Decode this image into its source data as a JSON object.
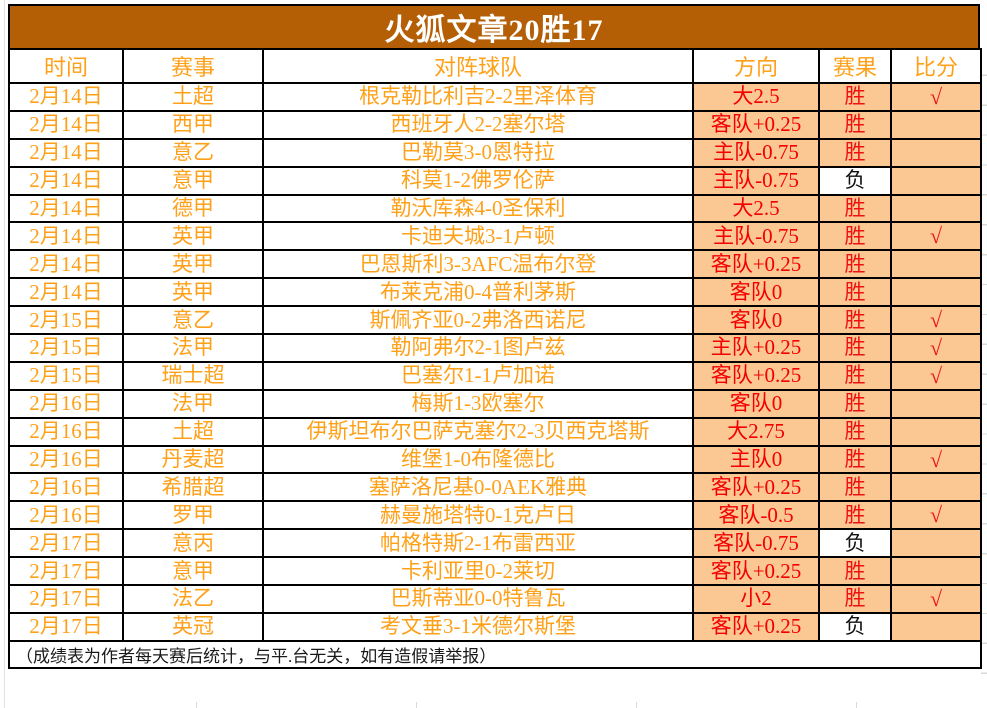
{
  "title": "火狐文章20胜17",
  "columns": {
    "time": "时间",
    "league": "赛事",
    "teams": "对阵球队",
    "direction": "方向",
    "result": "赛果",
    "score": "比分"
  },
  "check_mark": "√",
  "colors": {
    "title_bg": "#B45F06",
    "orange_text": "#FFA019",
    "highlight_bg": "#FBC894",
    "win_text": "#EE1111",
    "loss_text": "#111111",
    "direction_text": "#F40000"
  },
  "rows": [
    {
      "date": "2月14日",
      "league": "土超",
      "match": "根克勒比利吉2-2里泽体育",
      "direction": "大2.5",
      "result": "胜",
      "score": "√"
    },
    {
      "date": "2月14日",
      "league": "西甲",
      "match": "西班牙人2-2塞尔塔",
      "direction": "客队+0.25",
      "result": "胜",
      "score": ""
    },
    {
      "date": "2月14日",
      "league": "意乙",
      "match": "巴勒莫3-0恩特拉",
      "direction": "主队-0.75",
      "result": "胜",
      "score": ""
    },
    {
      "date": "2月14日",
      "league": "意甲",
      "match": "科莫1-2佛罗伦萨",
      "direction": "主队-0.75",
      "result": "负",
      "score": ""
    },
    {
      "date": "2月14日",
      "league": "德甲",
      "match": "勒沃库森4-0圣保利",
      "direction": "大2.5",
      "result": "胜",
      "score": ""
    },
    {
      "date": "2月14日",
      "league": "英甲",
      "match": "卡迪夫城3-1卢顿",
      "direction": "主队-0.75",
      "result": "胜",
      "score": "√"
    },
    {
      "date": "2月14日",
      "league": "英甲",
      "match": "巴恩斯利3-3AFC温布尔登",
      "direction": "客队+0.25",
      "result": "胜",
      "score": ""
    },
    {
      "date": "2月14日",
      "league": "英甲",
      "match": "布莱克浦0-4普利茅斯",
      "direction": "客队0",
      "result": "胜",
      "score": ""
    },
    {
      "date": "2月15日",
      "league": "意乙",
      "match": "斯佩齐亚0-2弗洛西诺尼",
      "direction": "客队0",
      "result": "胜",
      "score": "√"
    },
    {
      "date": "2月15日",
      "league": "法甲",
      "match": "勒阿弗尔2-1图卢兹",
      "direction": "主队+0.25",
      "result": "胜",
      "score": "√"
    },
    {
      "date": "2月15日",
      "league": "瑞士超",
      "match": "巴塞尔1-1卢加诺",
      "direction": "客队+0.25",
      "result": "胜",
      "score": "√"
    },
    {
      "date": "2月16日",
      "league": "法甲",
      "match": "梅斯1-3欧塞尔",
      "direction": "客队0",
      "result": "胜",
      "score": ""
    },
    {
      "date": "2月16日",
      "league": "土超",
      "match": "伊斯坦布尔巴萨克塞尔2-3贝西克塔斯",
      "direction": "大2.75",
      "result": "胜",
      "score": ""
    },
    {
      "date": "2月16日",
      "league": "丹麦超",
      "match": "维堡1-0布隆德比",
      "direction": "主队0",
      "result": "胜",
      "score": "√"
    },
    {
      "date": "2月16日",
      "league": "希腊超",
      "match": "塞萨洛尼基0-0AEK雅典",
      "direction": "客队+0.25",
      "result": "胜",
      "score": ""
    },
    {
      "date": "2月16日",
      "league": "罗甲",
      "match": "赫曼施塔特0-1克卢日",
      "direction": "客队-0.5",
      "result": "胜",
      "score": "√"
    },
    {
      "date": "2月17日",
      "league": "意丙",
      "match": "帕格特斯2-1布雷西亚",
      "direction": "客队-0.75",
      "result": "负",
      "score": ""
    },
    {
      "date": "2月17日",
      "league": "意甲",
      "match": "卡利亚里0-2莱切",
      "direction": "客队+0.25",
      "result": "胜",
      "score": ""
    },
    {
      "date": "2月17日",
      "league": "法乙",
      "match": "巴斯蒂亚0-0特鲁瓦",
      "direction": "小2",
      "result": "胜",
      "score": "√"
    },
    {
      "date": "2月17日",
      "league": "英冠",
      "match": "考文垂3-1米德尔斯堡",
      "direction": "客队+0.25",
      "result": "负",
      "score": ""
    }
  ],
  "footer": "（成绩表为作者每天赛后统计，与平.台无关，如有造假请举报）"
}
